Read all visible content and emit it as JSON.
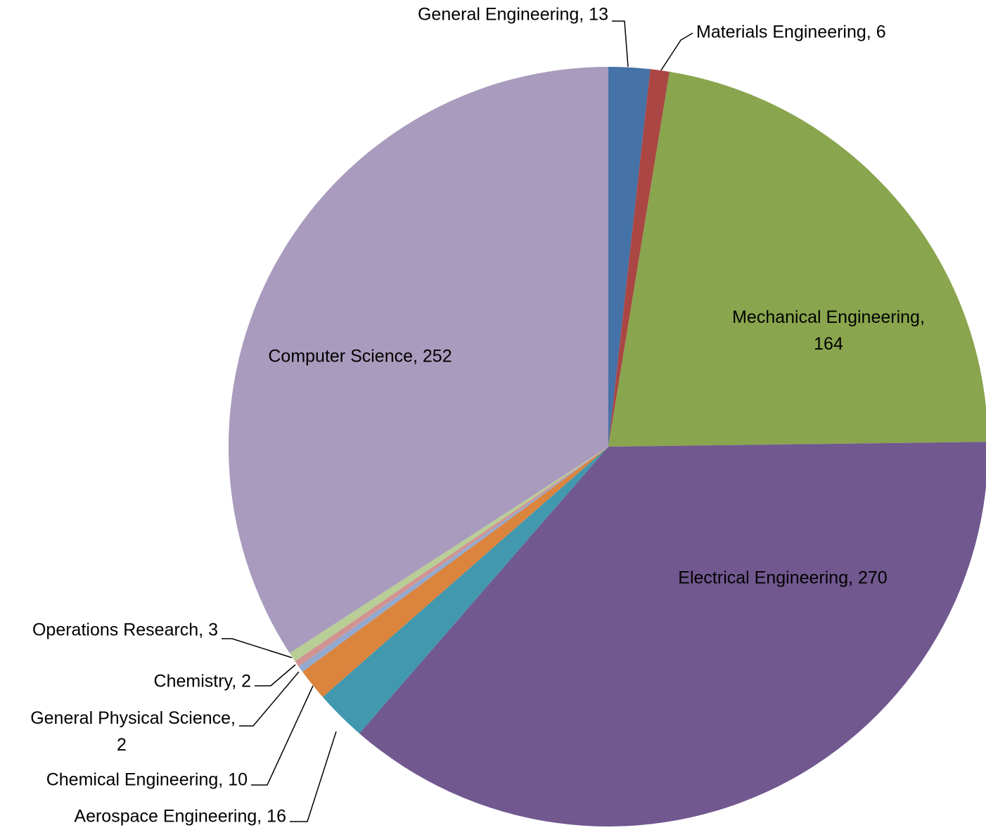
{
  "chart_data": {
    "type": "pie",
    "categories": [
      "General Engineering",
      "Materials Engineering",
      "Mechanical Engineering",
      "Electrical Engineering",
      "Aerospace Engineering",
      "Chemical Engineering",
      "General Physical Science",
      "Chemistry",
      "Operations Research",
      "Computer Science"
    ],
    "values": [
      13,
      6,
      164,
      270,
      16,
      10,
      2,
      2,
      3,
      252
    ],
    "value_labels": [
      "General Engineering, 13",
      "Materials Engineering, 6",
      "Mechanical Engineering, 164",
      "Electrical Engineering, 270",
      "Aerospace Engineering, 16",
      "Chemical Engineering, 10",
      "General Physical Science, 2",
      "Chemistry, 2",
      "Operations Research, 3",
      "Computer Science, 252"
    ],
    "colors": [
      "#4572a7",
      "#aa4643",
      "#89a54e",
      "#71588f",
      "#4198af",
      "#db843d",
      "#93a9cf",
      "#d19392",
      "#b9cd96",
      "#a99bbd"
    ]
  }
}
